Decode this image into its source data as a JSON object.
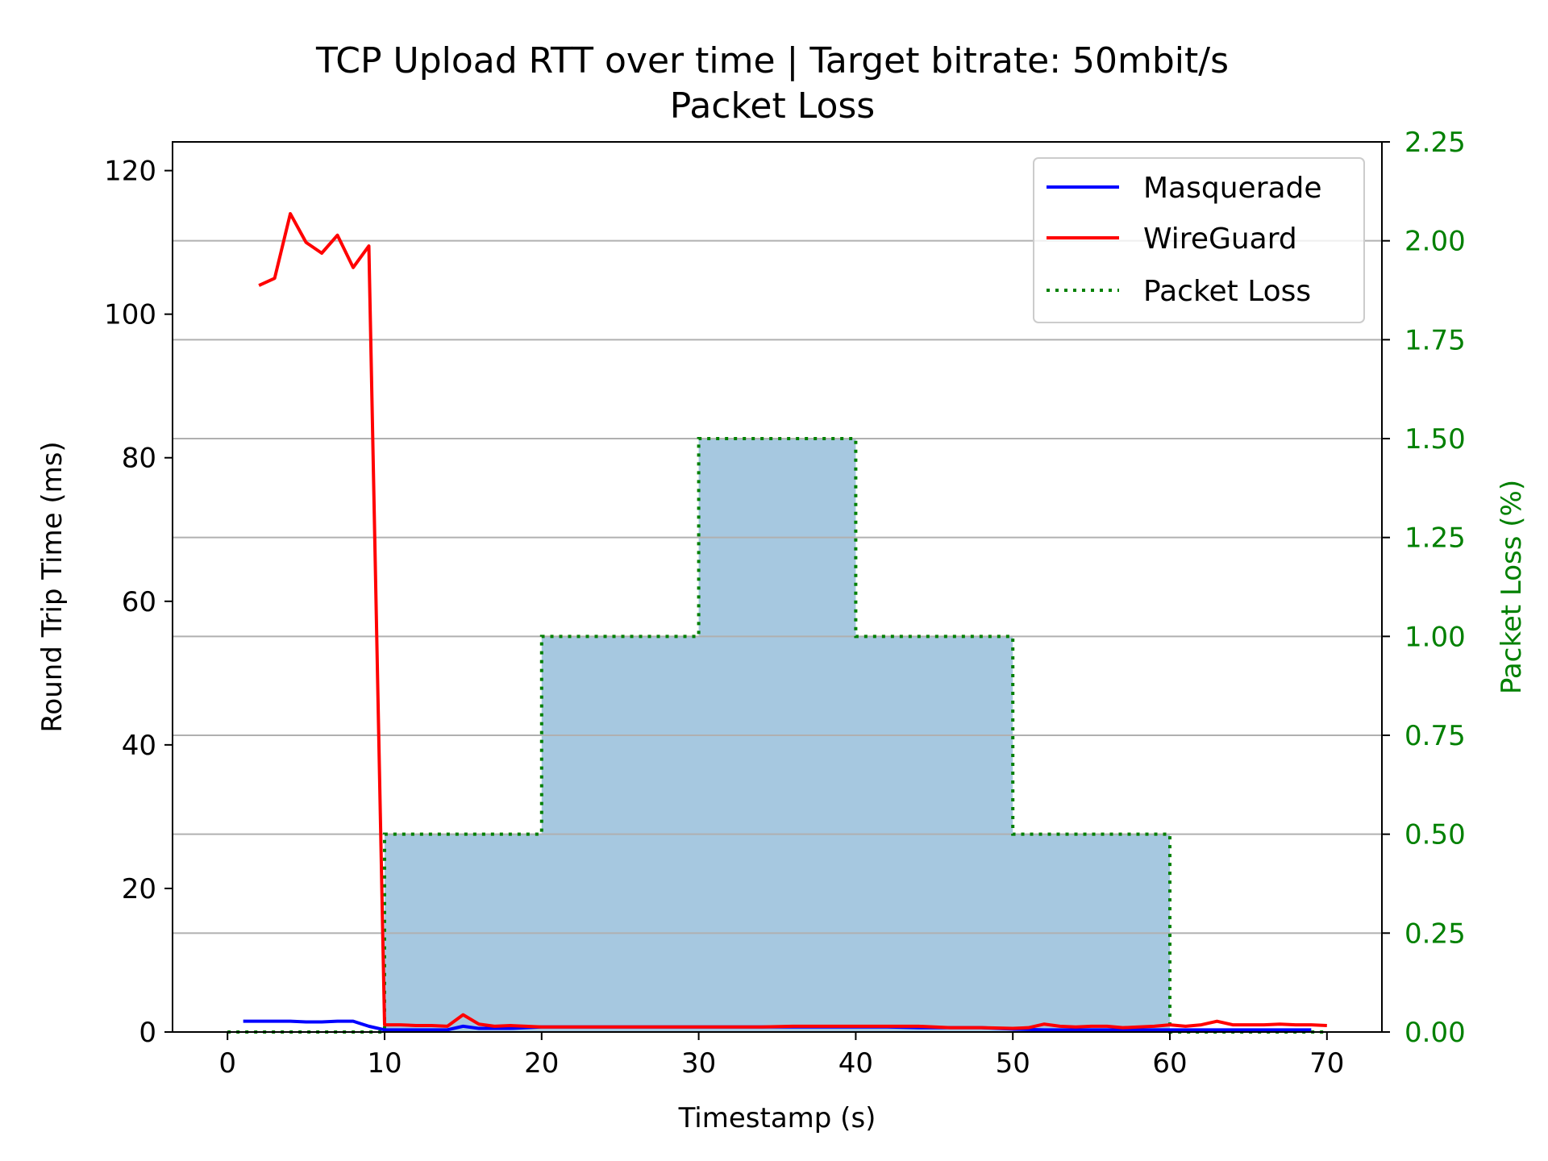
{
  "chart_data": {
    "type": "line",
    "title": "TCP Upload RTT over time | Target bitrate: 50mbit/s",
    "subtitle": "Packet Loss",
    "xlabel": "Timestamp (s)",
    "ylabel": "Round Trip Time (ms)",
    "y2label": "Packet Loss (%)",
    "xlim": [
      -3.5,
      73.5
    ],
    "ylim": [
      0,
      124
    ],
    "y2lim": [
      0,
      2.25
    ],
    "xticks": [
      0,
      10,
      20,
      30,
      40,
      50,
      60,
      70
    ],
    "yticks": [
      0,
      20,
      40,
      60,
      80,
      100,
      120
    ],
    "y2ticks": [
      0.0,
      0.25,
      0.5,
      0.75,
      1.0,
      1.25,
      1.5,
      1.75,
      2.0,
      2.25
    ],
    "y2tick_labels": [
      "0.00",
      "0.25",
      "0.50",
      "0.75",
      "1.00",
      "1.25",
      "1.50",
      "1.75",
      "2.00",
      "2.25"
    ],
    "grid": "horizontal-right-axis",
    "legend_position": "top-right",
    "legend": [
      "Masquerade",
      "WireGuard",
      "Packet Loss"
    ],
    "colors": {
      "masquerade": "#0000ff",
      "wireguard": "#ff0000",
      "packet_loss_line": "#008000",
      "packet_loss_fill": "#a6c8e0",
      "right_axis": "#008000",
      "grid": "#b0b0b0"
    },
    "series": [
      {
        "name": "Masquerade",
        "axis": "left",
        "style": "solid",
        "x": [
          1,
          2,
          3,
          4,
          5,
          6,
          7,
          8,
          9,
          10,
          11,
          12,
          13,
          14,
          15,
          16,
          17,
          18,
          19,
          20,
          22,
          24,
          26,
          28,
          30,
          32,
          34,
          36,
          38,
          40,
          42,
          44,
          46,
          48,
          50,
          52,
          54,
          56,
          58,
          60,
          62,
          64,
          66,
          68,
          69
        ],
        "y": [
          1.5,
          1.5,
          1.5,
          1.5,
          1.4,
          1.4,
          1.5,
          1.5,
          0.8,
          0.3,
          0.3,
          0.3,
          0.3,
          0.3,
          0.8,
          0.5,
          0.5,
          0.5,
          0.6,
          0.7,
          0.7,
          0.7,
          0.7,
          0.7,
          0.7,
          0.7,
          0.7,
          0.7,
          0.7,
          0.7,
          0.7,
          0.6,
          0.6,
          0.6,
          0.4,
          0.3,
          0.3,
          0.3,
          0.3,
          0.3,
          0.3,
          0.3,
          0.3,
          0.3,
          0.3
        ]
      },
      {
        "name": "WireGuard",
        "axis": "left",
        "style": "solid",
        "x": [
          2,
          3,
          4,
          5,
          6,
          7,
          8,
          9,
          10,
          11,
          12,
          13,
          14,
          15,
          16,
          17,
          18,
          19,
          20,
          22,
          24,
          26,
          28,
          30,
          32,
          34,
          36,
          38,
          40,
          42,
          44,
          46,
          48,
          50,
          51,
          52,
          53,
          54,
          55,
          56,
          57,
          58,
          59,
          60,
          61,
          62,
          63,
          64,
          65,
          66,
          67,
          68,
          69,
          70
        ],
        "y": [
          104,
          105,
          114,
          110,
          108.5,
          111,
          106.5,
          109.5,
          1.0,
          1.0,
          0.9,
          0.9,
          0.8,
          2.4,
          1.1,
          0.8,
          0.9,
          0.8,
          0.7,
          0.7,
          0.7,
          0.7,
          0.7,
          0.7,
          0.7,
          0.7,
          0.8,
          0.8,
          0.8,
          0.8,
          0.8,
          0.6,
          0.6,
          0.5,
          0.6,
          1.1,
          0.8,
          0.7,
          0.8,
          0.8,
          0.6,
          0.7,
          0.8,
          1.0,
          0.8,
          1.0,
          1.5,
          1.0,
          1.0,
          1.0,
          1.1,
          1.0,
          1.0,
          0.9
        ]
      },
      {
        "name": "Packet Loss",
        "axis": "right",
        "style": "dotted-step",
        "x": [
          0,
          10,
          20,
          30,
          40,
          50,
          60,
          70
        ],
        "y": [
          0.0,
          0.5,
          1.0,
          1.5,
          1.0,
          0.5,
          0.0,
          0.0
        ]
      }
    ]
  }
}
